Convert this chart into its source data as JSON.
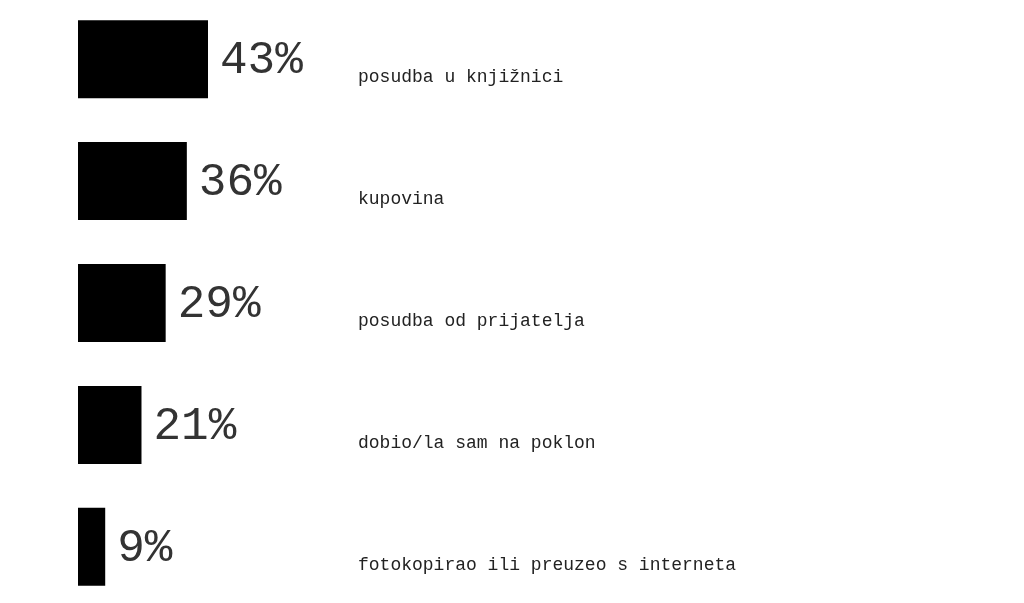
{
  "chart_data": {
    "type": "bar",
    "orientation": "horizontal",
    "categories": [
      "posudba u knjižnici",
      "kupovina",
      "posudba od prijatelja",
      "dobio/la sam na poklon",
      "fotokopirao ili preuzeo s interneta"
    ],
    "values": [
      43,
      36,
      29,
      21,
      9
    ],
    "value_labels": [
      "43%",
      "36%",
      "29%",
      "21%",
      "9%"
    ],
    "color": "#000000"
  }
}
